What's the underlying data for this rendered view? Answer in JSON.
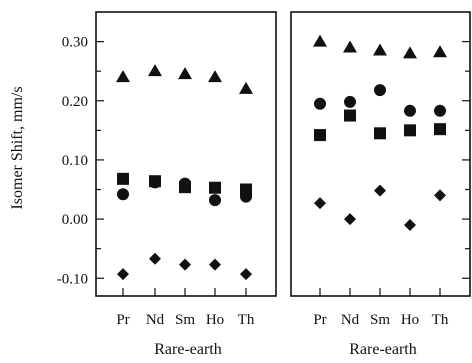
{
  "chart_data": [
    {
      "type": "scatter",
      "ylabel": "Isomer Shift, mm/s",
      "xlabel": "Rare-earth",
      "categories": [
        "Pr",
        "Nd",
        "Sm",
        "Ho",
        "Th"
      ],
      "ylim": [
        -0.13,
        0.35
      ],
      "yticks": [
        {
          "value": 0.3,
          "label": "0.30"
        },
        {
          "value": 0.2,
          "label": "0.20"
        },
        {
          "value": 0.1,
          "label": "0.10"
        },
        {
          "value": 0.0,
          "label": "0.00"
        },
        {
          "value": -0.1,
          "label": "-0.10"
        }
      ],
      "series": [
        {
          "marker": "triangle",
          "values": [
            0.24,
            0.25,
            0.245,
            0.24,
            0.22
          ]
        },
        {
          "marker": "square",
          "values": [
            0.068,
            0.064,
            0.054,
            0.053,
            0.05
          ]
        },
        {
          "marker": "circle",
          "values": [
            0.042,
            0.062,
            0.06,
            0.032,
            0.038
          ]
        },
        {
          "marker": "diamond",
          "values": [
            -0.093,
            -0.067,
            -0.077,
            -0.077,
            -0.093
          ]
        }
      ]
    },
    {
      "type": "scatter",
      "xlabel": "Rare-earth",
      "categories": [
        "Pr",
        "Nd",
        "Sm",
        "Ho",
        "Th"
      ],
      "ylim": [
        -0.13,
        0.35
      ],
      "series": [
        {
          "marker": "triangle",
          "values": [
            0.3,
            0.29,
            0.285,
            0.28,
            0.282
          ]
        },
        {
          "marker": "circle",
          "values": [
            0.195,
            0.198,
            0.218,
            0.183,
            0.183
          ]
        },
        {
          "marker": "square",
          "values": [
            0.142,
            0.175,
            0.145,
            0.15,
            0.152
          ]
        },
        {
          "marker": "diamond",
          "values": [
            0.027,
            0.0,
            0.048,
            -0.01,
            0.04
          ]
        }
      ]
    }
  ]
}
